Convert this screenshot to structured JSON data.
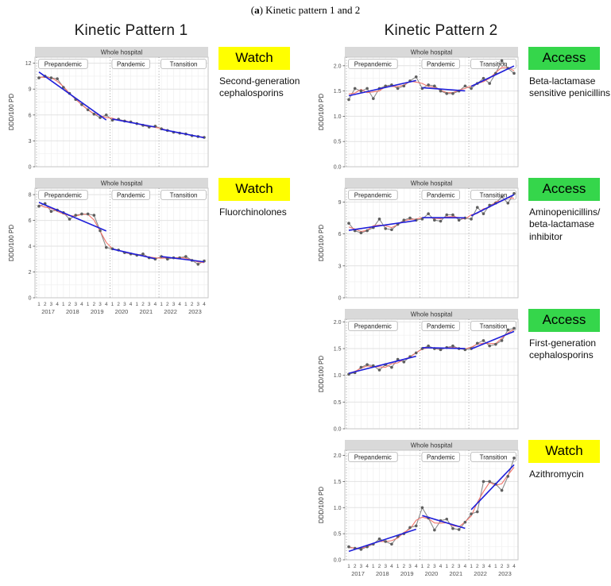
{
  "page": {
    "caption_open": "(",
    "caption_letter": "a",
    "caption_rest": ") Kinetic pattern 1 and 2"
  },
  "columns": [
    {
      "title": "Kinetic Pattern 1",
      "chart_indexes": [
        0,
        1
      ]
    },
    {
      "title": "Kinetic Pattern 2",
      "chart_indexes": [
        2,
        3,
        4,
        5
      ]
    }
  ],
  "periods": [
    {
      "label": "Prepandemic",
      "start": 0,
      "end": 11
    },
    {
      "label": "Pandemic",
      "start": 12,
      "end": 19
    },
    {
      "label": "Transition",
      "start": 20,
      "end": 27
    }
  ],
  "axis": {
    "quarters": [
      "1",
      "2",
      "3",
      "4"
    ],
    "years": [
      "2017",
      "2018",
      "2019",
      "2020",
      "2021",
      "2022",
      "2023"
    ]
  },
  "colors": {
    "badge_watch": "#FFFF00",
    "badge_access": "#35D64B",
    "line_data": "#8a8a8a",
    "point": "#5e5e5e",
    "line_smooth": "#f2756c",
    "line_trend": "#1f1fd9",
    "strip_bg": "#d9d9d9",
    "grid_major": "#e2e2e2",
    "grid_minor": "#f0f0f0",
    "panel_border": "#c6c6c6",
    "vline": "#8c8c8c",
    "tick_text": "#4f4f4f"
  },
  "chart_data": [
    {
      "id": "second-generation-cephalosporins",
      "type": "line",
      "strip_label": "Whole hospital",
      "badge": "Watch",
      "badge_color": "#FFFF00",
      "drug_label": "Second-generation cephalosporins",
      "ylabel": "DDD/100 PD",
      "ylim": [
        0,
        12.7
      ],
      "yticks": [
        0,
        3,
        6,
        9,
        12
      ],
      "ytick_labels": [
        "0",
        "3",
        "6",
        "9",
        "12"
      ],
      "show_x_axis": false,
      "values": [
        10.3,
        10.5,
        10.3,
        10.2,
        9.2,
        8.5,
        7.8,
        7.2,
        6.6,
        6.1,
        5.7,
        6.0,
        5.4,
        5.5,
        5.3,
        5.2,
        5.0,
        4.8,
        4.6,
        4.7,
        4.4,
        4.2,
        4.0,
        3.9,
        3.8,
        3.6,
        3.5,
        3.4
      ]
    },
    {
      "id": "fluorchinolones",
      "type": "line",
      "strip_label": "Whole hospital",
      "badge": "Watch",
      "badge_color": "#FFFF00",
      "drug_label": "Fluorchinolones",
      "ylabel": "DDD/100 PD",
      "ylim": [
        0,
        8.5
      ],
      "yticks": [
        0,
        2,
        4,
        6,
        8
      ],
      "ytick_labels": [
        "0",
        "2",
        "4",
        "6",
        "8"
      ],
      "show_x_axis": true,
      "values": [
        7.1,
        7.3,
        6.7,
        6.8,
        6.6,
        6.1,
        6.4,
        6.5,
        6.5,
        6.4,
        5.2,
        3.9,
        3.8,
        3.7,
        3.5,
        3.4,
        3.3,
        3.4,
        3.1,
        3.0,
        3.2,
        3.0,
        3.1,
        3.1,
        3.2,
        2.9,
        2.6,
        2.85
      ]
    },
    {
      "id": "beta-lactamase-sensitive-penicillins",
      "type": "line",
      "strip_label": "Whole hospital",
      "badge": "Access",
      "badge_color": "#35D64B",
      "drug_label": "Beta-lactamase sensitive penicillins",
      "ylabel": "DDD/100 PD",
      "ylim": [
        0,
        2.17
      ],
      "yticks": [
        0,
        0.5,
        1.0,
        1.5,
        2.0
      ],
      "ytick_labels": [
        "0.0",
        "0.5",
        "1.0",
        "1.5",
        "2.0"
      ],
      "show_x_axis": false,
      "values": [
        1.33,
        1.55,
        1.5,
        1.55,
        1.35,
        1.55,
        1.6,
        1.62,
        1.55,
        1.6,
        1.7,
        1.78,
        1.55,
        1.62,
        1.6,
        1.5,
        1.45,
        1.45,
        1.5,
        1.6,
        1.55,
        1.65,
        1.75,
        1.65,
        1.85,
        2.1,
        1.95,
        1.85
      ]
    },
    {
      "id": "aminopenicillins-beta-lactamase-inhibitor",
      "type": "line",
      "strip_label": "Whole hospital",
      "badge": "Access",
      "badge_color": "#35D64B",
      "drug_label": "Aminopenicillins/ beta-lactamase inhibitor",
      "ylabel": "DDD/100 PD",
      "ylim": [
        0,
        10.3
      ],
      "yticks": [
        0,
        3,
        6,
        9
      ],
      "ytick_labels": [
        "0",
        "3",
        "6",
        "9"
      ],
      "show_x_axis": false,
      "values": [
        7.0,
        6.3,
        6.1,
        6.3,
        6.6,
        7.4,
        6.5,
        6.4,
        6.9,
        7.3,
        7.5,
        7.3,
        7.4,
        7.9,
        7.3,
        7.2,
        7.8,
        7.8,
        7.3,
        7.5,
        7.4,
        8.5,
        7.9,
        8.7,
        8.9,
        9.5,
        8.9,
        9.8
      ]
    },
    {
      "id": "first-generation-cephalosporins",
      "type": "line",
      "strip_label": "Whole hospital",
      "badge": "Access",
      "badge_color": "#35D64B",
      "drug_label": "First-generation cephalosporins",
      "ylabel": "DDD/100 PD",
      "ylim": [
        0,
        2.05
      ],
      "yticks": [
        0,
        0.5,
        1.0,
        1.5,
        2.0
      ],
      "ytick_labels": [
        "0.0",
        "0.5",
        "1.0",
        "1.5",
        "2.0"
      ],
      "show_x_axis": false,
      "values": [
        1.02,
        1.05,
        1.15,
        1.2,
        1.18,
        1.1,
        1.2,
        1.15,
        1.3,
        1.25,
        1.35,
        1.42,
        1.5,
        1.55,
        1.5,
        1.48,
        1.52,
        1.55,
        1.5,
        1.48,
        1.5,
        1.6,
        1.65,
        1.55,
        1.58,
        1.65,
        1.85,
        1.88
      ]
    },
    {
      "id": "azithromycin",
      "type": "line",
      "strip_label": "Whole hospital",
      "badge": "Watch",
      "badge_color": "#FFFF00",
      "drug_label": "Azithromycin",
      "ylabel": "DDD/100 PD",
      "ylim": [
        0,
        2.1
      ],
      "yticks": [
        0,
        0.5,
        1.0,
        1.5,
        2.0
      ],
      "ytick_labels": [
        "0.0",
        "0.5",
        "1.0",
        "1.5",
        "2.0"
      ],
      "show_x_axis": true,
      "values": [
        0.25,
        0.22,
        0.2,
        0.25,
        0.3,
        0.4,
        0.35,
        0.3,
        0.45,
        0.5,
        0.62,
        0.65,
        1.0,
        0.8,
        0.57,
        0.75,
        0.78,
        0.6,
        0.58,
        0.72,
        0.88,
        0.92,
        1.5,
        1.5,
        1.45,
        1.33,
        1.6,
        1.95
      ]
    }
  ]
}
